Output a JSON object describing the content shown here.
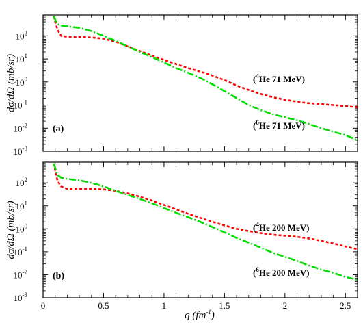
{
  "chart_data": [
    {
      "type": "line",
      "panel_label": "(a)",
      "ylabel": "dσ/dΩ (mb/sr)",
      "xlim": [
        0,
        2.6
      ],
      "ylim_log10": [
        -3,
        2.9
      ],
      "x_ticks": [
        "0",
        "0.5",
        "1",
        "1.5",
        "2",
        "2.5"
      ],
      "y_ticks": [
        {
          "base": "10",
          "exp": "-3"
        },
        {
          "base": "10",
          "exp": "-2"
        },
        {
          "base": "10",
          "exp": "-1"
        },
        {
          "base": "10",
          "exp": "0"
        },
        {
          "base": "10",
          "exp": "1"
        },
        {
          "base": "10",
          "exp": "2"
        }
      ],
      "series": [
        {
          "name": "(4He 71 MeV)",
          "label_open": "(",
          "label_sup": "4",
          "label_rest": "He 71 MeV)",
          "color": "#ff0000",
          "style": "dotted",
          "x": [
            0.09,
            0.1,
            0.12,
            0.15,
            0.2,
            0.3,
            0.4,
            0.5,
            0.6,
            0.7,
            0.8,
            0.9,
            1.0,
            1.1,
            1.2,
            1.3,
            1.4,
            1.5,
            1.6,
            1.7,
            1.8,
            1.9,
            2.0,
            2.1,
            2.2,
            2.3,
            2.4,
            2.5,
            2.6
          ],
          "y": [
            700,
            400,
            180,
            100,
            90,
            88,
            85,
            75,
            55,
            35,
            22,
            14,
            9,
            6,
            4,
            2.8,
            1.9,
            1.2,
            0.7,
            0.45,
            0.3,
            0.22,
            0.17,
            0.14,
            0.12,
            0.11,
            0.1,
            0.09,
            0.08
          ]
        },
        {
          "name": "(6He 71 MeV)",
          "label_open": "(",
          "label_sup": "6",
          "label_rest": "He 71 MeV)",
          "color": "#00dd00",
          "style": "dash-dot",
          "x": [
            0.09,
            0.1,
            0.12,
            0.15,
            0.2,
            0.3,
            0.4,
            0.5,
            0.6,
            0.7,
            0.8,
            0.9,
            1.0,
            1.1,
            1.2,
            1.3,
            1.4,
            1.5,
            1.6,
            1.7,
            1.8,
            1.9,
            2.0,
            2.1,
            2.2,
            2.3,
            2.4,
            2.5,
            2.6
          ],
          "y": [
            700,
            500,
            320,
            280,
            260,
            220,
            160,
            100,
            60,
            35,
            20,
            12,
            7,
            4,
            2.5,
            1.5,
            0.8,
            0.4,
            0.2,
            0.1,
            0.06,
            0.04,
            0.03,
            0.022,
            0.015,
            0.01,
            0.007,
            0.005,
            0.003
          ]
        }
      ]
    },
    {
      "type": "line",
      "panel_label": "(b)",
      "ylabel": "dσ/dΩ (mb/sr)",
      "xlabel": "q (fm-1)",
      "xlabel_main": "q (fm",
      "xlabel_sup": "-1",
      "xlabel_close": ")",
      "xlim": [
        0,
        2.6
      ],
      "ylim_log10": [
        -3,
        2.9
      ],
      "x_ticks": [
        "0",
        "0.5",
        "1",
        "1.5",
        "2",
        "2.5"
      ],
      "y_ticks": [
        {
          "base": "10",
          "exp": "-3"
        },
        {
          "base": "10",
          "exp": "-2"
        },
        {
          "base": "10",
          "exp": "-1"
        },
        {
          "base": "10",
          "exp": "0"
        },
        {
          "base": "10",
          "exp": "1"
        },
        {
          "base": "10",
          "exp": "2"
        }
      ],
      "series": [
        {
          "name": "(4He 200 MeV)",
          "label_open": "(",
          "label_sup": "4",
          "label_rest": "He 200 MeV)",
          "color": "#ff0000",
          "style": "dotted",
          "x": [
            0.09,
            0.1,
            0.12,
            0.15,
            0.2,
            0.3,
            0.4,
            0.5,
            0.6,
            0.7,
            0.8,
            0.9,
            1.0,
            1.1,
            1.2,
            1.3,
            1.4,
            1.5,
            1.6,
            1.7,
            1.8,
            1.9,
            2.0,
            2.1,
            2.2,
            2.3,
            2.4,
            2.5,
            2.6
          ],
          "y": [
            700,
            350,
            120,
            70,
            55,
            55,
            55,
            52,
            45,
            35,
            25,
            17,
            11,
            7,
            4.5,
            3,
            2,
            1.4,
            1,
            0.8,
            0.65,
            0.55,
            0.5,
            0.45,
            0.38,
            0.3,
            0.23,
            0.17,
            0.13
          ]
        },
        {
          "name": "(6He 200 MeV)",
          "label_open": "(",
          "label_sup": "6",
          "label_rest": "He 200 MeV)",
          "color": "#00dd00",
          "style": "dash-dot",
          "x": [
            0.09,
            0.1,
            0.12,
            0.15,
            0.2,
            0.3,
            0.4,
            0.5,
            0.6,
            0.7,
            0.8,
            0.9,
            1.0,
            1.1,
            1.2,
            1.3,
            1.4,
            1.5,
            1.6,
            1.7,
            1.8,
            1.9,
            2.0,
            2.1,
            2.2,
            2.3,
            2.4,
            2.5,
            2.6
          ],
          "y": [
            700,
            450,
            220,
            170,
            150,
            130,
            100,
            70,
            45,
            30,
            20,
            13,
            8,
            5,
            3.2,
            2,
            1.2,
            0.7,
            0.4,
            0.25,
            0.15,
            0.09,
            0.06,
            0.04,
            0.025,
            0.017,
            0.012,
            0.008,
            0.006
          ]
        }
      ]
    }
  ]
}
